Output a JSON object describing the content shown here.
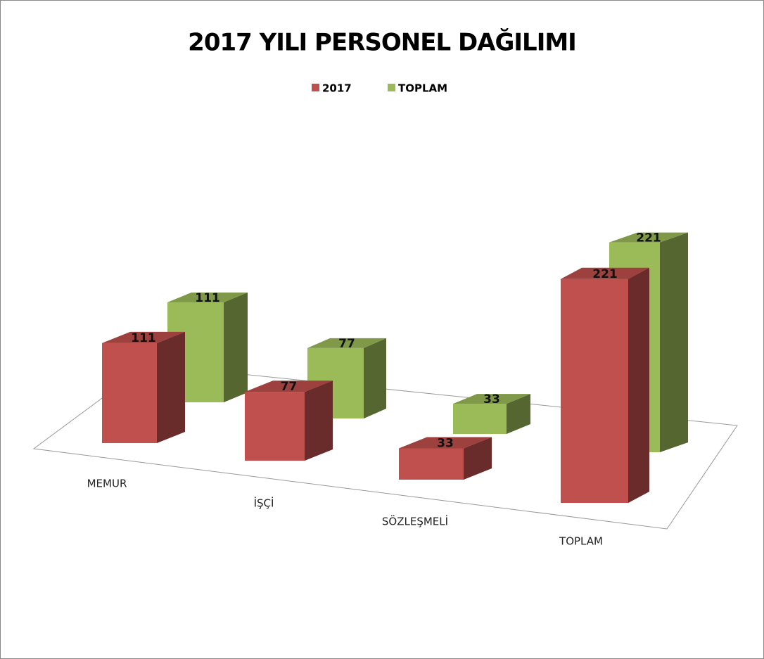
{
  "chart_data": {
    "type": "bar3d",
    "title": "2017 YILI PERSONEL DAĞILIMI",
    "categories": [
      "MEMUR",
      "İŞÇİ",
      "SÖZLEŞMELİ",
      "TOPLAM"
    ],
    "series": [
      {
        "name": "2017",
        "color": "#c0504d",
        "values": [
          111,
          77,
          33,
          221
        ]
      },
      {
        "name": "TOPLAM",
        "color": "#9bbb59",
        "values": [
          111,
          77,
          33,
          221
        ]
      }
    ],
    "legend": "top"
  }
}
